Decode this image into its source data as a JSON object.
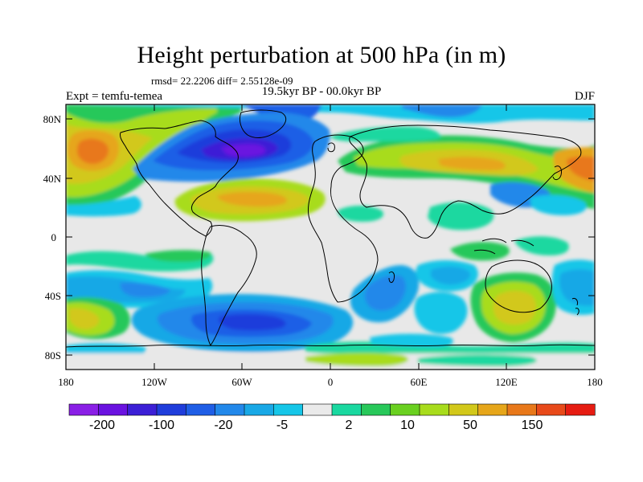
{
  "title": "Height perturbation at 500 hPa (in m)",
  "stats": "rmsd= 22.2206 diff= 2.55128e-09",
  "experiment": "Expt = temfu-temea",
  "period": "19.5kyr BP - 00.0kyr BP",
  "season": "DJF",
  "lat_ticks": [
    "80N",
    "40N",
    "0",
    "40S",
    "80S"
  ],
  "lon_ticks": [
    "180",
    "120W",
    "60W",
    "0",
    "60E",
    "120E",
    "180"
  ],
  "colorbar": {
    "labels": [
      "-200",
      "-100",
      "-20",
      "-5",
      "2",
      "10",
      "50",
      "150"
    ],
    "colors": [
      "#8a1fe6",
      "#6a12e0",
      "#3c1fd6",
      "#1f3ddb",
      "#1f5ee6",
      "#2288ea",
      "#19a8e6",
      "#16c6e8",
      "#eaeaea",
      "#1ad8a0",
      "#28c85a",
      "#6ad020",
      "#a8dc1c",
      "#d2c81a",
      "#e6a61a",
      "#e8781a",
      "#e84a1a",
      "#e61c12"
    ]
  },
  "map_colors": {
    "background": "#e8e8e8",
    "coast": "#000000"
  }
}
